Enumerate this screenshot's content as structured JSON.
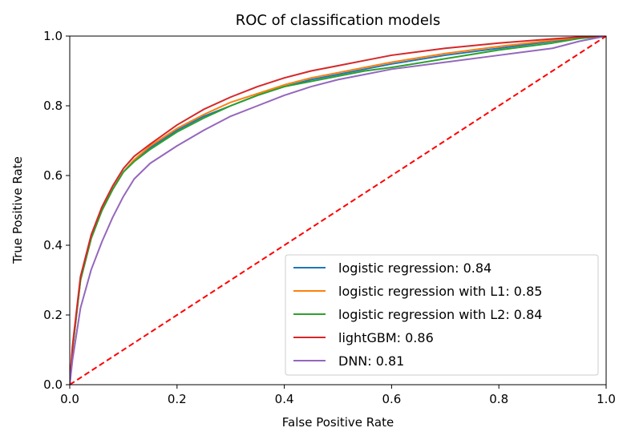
{
  "chart_data": {
    "type": "line",
    "title": "ROC of classification models",
    "xlabel": "False Positive Rate",
    "ylabel": "True Positive Rate",
    "xlim": [
      0.0,
      1.0
    ],
    "ylim": [
      0.0,
      1.0
    ],
    "x_ticks": [
      "0.0",
      "0.2",
      "0.4",
      "0.6",
      "0.8",
      "1.0"
    ],
    "y_ticks": [
      "0.0",
      "0.2",
      "0.4",
      "0.6",
      "0.8",
      "1.0"
    ],
    "grid": false,
    "legend_position": "lower-right",
    "series": [
      {
        "name": "logistic regression: 0.84",
        "color": "#1f77b4",
        "x": [
          0,
          0.005,
          0.02,
          0.04,
          0.06,
          0.08,
          0.1,
          0.12,
          0.15,
          0.2,
          0.25,
          0.3,
          0.35,
          0.4,
          0.45,
          0.5,
          0.55,
          0.6,
          0.7,
          0.8,
          0.9,
          0.95,
          1.0
        ],
        "y": [
          0,
          0.1,
          0.3,
          0.42,
          0.5,
          0.56,
          0.61,
          0.645,
          0.68,
          0.73,
          0.77,
          0.8,
          0.83,
          0.855,
          0.875,
          0.89,
          0.905,
          0.92,
          0.945,
          0.965,
          0.985,
          0.995,
          1.0
        ]
      },
      {
        "name": "logistic regression with L1: 0.85",
        "color": "#ff7f0e",
        "x": [
          0,
          0.005,
          0.02,
          0.04,
          0.06,
          0.08,
          0.1,
          0.12,
          0.15,
          0.2,
          0.25,
          0.3,
          0.35,
          0.4,
          0.45,
          0.5,
          0.55,
          0.6,
          0.7,
          0.8,
          0.9,
          0.95,
          1.0
        ],
        "y": [
          0,
          0.1,
          0.3,
          0.42,
          0.5,
          0.56,
          0.61,
          0.645,
          0.685,
          0.735,
          0.775,
          0.81,
          0.835,
          0.86,
          0.88,
          0.895,
          0.91,
          0.925,
          0.95,
          0.97,
          0.988,
          0.996,
          1.0
        ]
      },
      {
        "name": "logistic regression with L2: 0.84",
        "color": "#2ca02c",
        "x": [
          0,
          0.005,
          0.02,
          0.04,
          0.06,
          0.08,
          0.1,
          0.12,
          0.15,
          0.2,
          0.25,
          0.3,
          0.35,
          0.4,
          0.45,
          0.5,
          0.55,
          0.6,
          0.7,
          0.8,
          0.9,
          0.95,
          1.0
        ],
        "y": [
          0,
          0.1,
          0.3,
          0.42,
          0.5,
          0.56,
          0.61,
          0.64,
          0.675,
          0.725,
          0.765,
          0.8,
          0.83,
          0.855,
          0.87,
          0.885,
          0.9,
          0.91,
          0.935,
          0.96,
          0.98,
          0.993,
          1.0
        ]
      },
      {
        "name": "lightGBM: 0.86",
        "color": "#d62728",
        "x": [
          0,
          0.005,
          0.02,
          0.04,
          0.06,
          0.08,
          0.1,
          0.12,
          0.15,
          0.2,
          0.25,
          0.3,
          0.35,
          0.4,
          0.45,
          0.5,
          0.55,
          0.6,
          0.7,
          0.8,
          0.9,
          0.95,
          1.0
        ],
        "y": [
          0,
          0.11,
          0.31,
          0.43,
          0.51,
          0.57,
          0.62,
          0.655,
          0.69,
          0.745,
          0.79,
          0.825,
          0.855,
          0.88,
          0.9,
          0.915,
          0.93,
          0.945,
          0.965,
          0.98,
          0.992,
          0.997,
          1.0
        ]
      },
      {
        "name": "DNN: 0.81",
        "color": "#9467bd",
        "x": [
          0,
          0.005,
          0.02,
          0.04,
          0.06,
          0.08,
          0.1,
          0.12,
          0.15,
          0.2,
          0.25,
          0.3,
          0.35,
          0.4,
          0.45,
          0.5,
          0.55,
          0.6,
          0.7,
          0.8,
          0.9,
          0.95,
          1.0
        ],
        "y": [
          0,
          0.07,
          0.22,
          0.33,
          0.41,
          0.48,
          0.54,
          0.59,
          0.635,
          0.685,
          0.73,
          0.77,
          0.8,
          0.83,
          0.855,
          0.875,
          0.89,
          0.905,
          0.925,
          0.945,
          0.965,
          0.985,
          1.0
        ]
      }
    ],
    "reference_line": {
      "x": [
        0,
        1
      ],
      "y": [
        0,
        1
      ],
      "color": "#ff0000",
      "style": "dashed"
    }
  }
}
